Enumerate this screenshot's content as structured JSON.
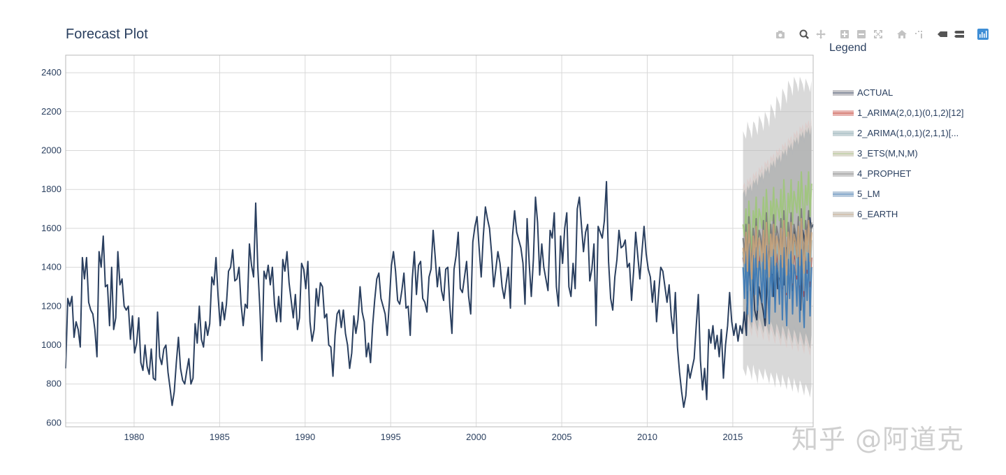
{
  "title": "Forecast Plot",
  "legend_title": "Legend",
  "watermark": "知乎 @阿道克",
  "modebar": {
    "buttons": [
      "camera-icon",
      "zoom-icon",
      "pan-icon",
      "zoom-in-icon",
      "zoom-out-icon",
      "autoscale-icon",
      "home-icon",
      "spike-lines-icon",
      "hover-closest-icon",
      "hover-compare-icon",
      "plotly-logo-icon"
    ]
  },
  "colors": {
    "actual": "#2a3f5f",
    "grid": "#d8d8d8",
    "axis": "#b8b8b8"
  },
  "chart_data": {
    "type": "line",
    "title": "Forecast Plot",
    "xlabel": "",
    "ylabel": "",
    "xlim": [
      1976,
      2019.7
    ],
    "ylim": [
      580,
      2490
    ],
    "x_ticks": [
      "1980",
      "1985",
      "1990",
      "1995",
      "2000",
      "2005",
      "2010",
      "2015"
    ],
    "y_ticks": [
      "600",
      "800",
      "1000",
      "1200",
      "1400",
      "1600",
      "1800",
      "2000",
      "2200",
      "2400"
    ],
    "grid": true,
    "legend_position": "right",
    "actual": {
      "name": "ACTUAL",
      "start_year": 1976.0,
      "end_year": 2019.7,
      "values": [
        880,
        1240,
        1200,
        1250,
        1040,
        1120,
        1080,
        990,
        1450,
        1340,
        1450,
        1220,
        1180,
        1160,
        1080,
        940,
        1480,
        1400,
        1560,
        1300,
        1310,
        1100,
        1400,
        1080,
        1140,
        1480,
        1310,
        1340,
        1200,
        1180,
        1200,
        1030,
        1150,
        960,
        1010,
        1140,
        910,
        870,
        1000,
        890,
        850,
        980,
        830,
        820,
        1170,
        940,
        900,
        980,
        1000,
        860,
        780,
        690,
        760,
        910,
        1040,
        880,
        820,
        800,
        870,
        930,
        800,
        830,
        1110,
        1010,
        1200,
        1030,
        990,
        1120,
        1050,
        1110,
        1350,
        1310,
        1450,
        1250,
        1100,
        1220,
        1130,
        1210,
        1380,
        1400,
        1490,
        1330,
        1340,
        1400,
        1210,
        1100,
        1210,
        1190,
        1520,
        1410,
        1350,
        1730,
        1400,
        1190,
        920,
        1380,
        1340,
        1410,
        1310,
        1400,
        1210,
        1120,
        1250,
        1120,
        1440,
        1380,
        1480,
        1320,
        1230,
        1140,
        1260,
        1080,
        1140,
        1420,
        1390,
        1290,
        1430,
        1120,
        1020,
        1080,
        1290,
        1200,
        1320,
        1300,
        1140,
        1160,
        1000,
        990,
        840,
        1050,
        1160,
        1180,
        1090,
        1180,
        1060,
        1000,
        880,
        960,
        1150,
        1060,
        1130,
        1300,
        1170,
        1120,
        940,
        1010,
        910,
        1100,
        1230,
        1340,
        1370,
        1240,
        1200,
        1160,
        1050,
        1220,
        1410,
        1480,
        1380,
        1230,
        1210,
        1280,
        1370,
        1190,
        1200,
        1050,
        1340,
        1480,
        1260,
        1410,
        1430,
        1240,
        1220,
        1170,
        1350,
        1390,
        1590,
        1450,
        1300,
        1400,
        1280,
        1230,
        1390,
        1400,
        1200,
        1060,
        1390,
        1460,
        1580,
        1290,
        1270,
        1350,
        1430,
        1250,
        1160,
        1530,
        1610,
        1660,
        1500,
        1350,
        1560,
        1710,
        1650,
        1600,
        1470,
        1300,
        1390,
        1480,
        1420,
        1300,
        1240,
        1320,
        1400,
        1190,
        1560,
        1690,
        1580,
        1540,
        1500,
        1420,
        1210,
        1650,
        1420,
        1250,
        1440,
        1760,
        1630,
        1360,
        1520,
        1400,
        1340,
        1280,
        1590,
        1550,
        1680,
        1300,
        1200,
        1560,
        1420,
        1600,
        1680,
        1300,
        1250,
        1420,
        1290,
        1700,
        1760,
        1620,
        1480,
        1580,
        1620,
        1330,
        1390,
        1520,
        1100,
        1610,
        1580,
        1550,
        1640,
        1840,
        1430,
        1240,
        1180,
        1350,
        1440,
        1590,
        1500,
        1510,
        1540,
        1400,
        1420,
        1230,
        1380,
        1580,
        1460,
        1340,
        1480,
        1610,
        1470,
        1390,
        1350,
        1220,
        1330,
        1120,
        1270,
        1400,
        1380,
        1300,
        1220,
        1310,
        1150,
        1060,
        1270,
        990,
        860,
        760,
        680,
        740,
        900,
        830,
        880,
        930,
        1100,
        1260,
        920,
        770,
        880,
        720,
        1080,
        1010,
        1100,
        980,
        1050,
        940,
        1080,
        830,
        1000,
        1100,
        1270,
        1120,
        1050,
        1110,
        1020,
        1100,
        1060,
        1170,
        1050,
        1490,
        1280,
        1400,
        1180,
        1130,
        1300,
        1240,
        1180,
        1100,
        1340,
        1480,
        1410,
        1250,
        1510,
        1290,
        1400,
        1460,
        1310,
        1500,
        1420,
        1580,
        1280,
        1600,
        1450,
        1540,
        1180,
        1590,
        1530,
        1560,
        1690,
        1600,
        1620
      ]
    },
    "forecast": {
      "start_year": 2015.6,
      "end_year": 2019.6,
      "n_points": 48,
      "interval_low": [
        880,
        860,
        840,
        900,
        880,
        860,
        820,
        900,
        860,
        840,
        800,
        880,
        860,
        840,
        820,
        880,
        850,
        830,
        800,
        860,
        840,
        820,
        780,
        860,
        830,
        810,
        780,
        850,
        820,
        800,
        770,
        840,
        820,
        790,
        760,
        830,
        800,
        780,
        750,
        820,
        800,
        770,
        740,
        800,
        780,
        760,
        730,
        790
      ],
      "interval_high": [
        2100,
        2080,
        2060,
        2150,
        2120,
        2100,
        2060,
        2150,
        2140,
        2110,
        2080,
        2180,
        2160,
        2140,
        2100,
        2200,
        2180,
        2160,
        2120,
        2240,
        2220,
        2200,
        2160,
        2280,
        2260,
        2240,
        2200,
        2320,
        2300,
        2280,
        2240,
        2360,
        2340,
        2320,
        2280,
        2380,
        2360,
        2340,
        2300,
        2380,
        2360,
        2340,
        2300,
        2370,
        2350,
        2330,
        2300,
        2360
      ],
      "inner_low": [
        1150,
        1120,
        1100,
        1160,
        1140,
        1110,
        1080,
        1150,
        1130,
        1100,
        1070,
        1140,
        1120,
        1090,
        1060,
        1130,
        1110,
        1080,
        1050,
        1120,
        1100,
        1070,
        1040,
        1110,
        1090,
        1060,
        1030,
        1100,
        1080,
        1050,
        1020,
        1090,
        1070,
        1040,
        1010,
        1080,
        1060,
        1030,
        1000,
        1070,
        1050,
        1020,
        990,
        1060,
        1040,
        1010,
        980,
        1050
      ],
      "inner_high": [
        1780,
        1800,
        1760,
        1820,
        1800,
        1830,
        1790,
        1850,
        1830,
        1860,
        1820,
        1880,
        1860,
        1890,
        1850,
        1910,
        1890,
        1920,
        1880,
        1940,
        1920,
        1950,
        1910,
        1970,
        1950,
        1980,
        1940,
        2000,
        1980,
        2010,
        1970,
        2030,
        2010,
        2040,
        2000,
        2060,
        2040,
        2070,
        2030,
        2090,
        2070,
        2100,
        2060,
        2110,
        2090,
        2120,
        2080,
        2130
      ],
      "series": [
        {
          "name": "1_ARIMA(2,0,1)(0,1,2)[12]",
          "color": "#c0392b",
          "band": "#e8b4b0",
          "values": [
            1450,
            1380,
            1520,
            1300,
            1560,
            1420,
            1260,
            1500,
            1380,
            1540,
            1330,
            1480,
            1420,
            1360,
            1520,
            1300,
            1550,
            1410,
            1270,
            1490,
            1390,
            1530,
            1320,
            1470,
            1430,
            1350,
            1510,
            1290,
            1540,
            1400,
            1260,
            1480,
            1380,
            1520,
            1310,
            1460,
            1440,
            1340,
            1500,
            1290,
            1530,
            1390,
            1250,
            1470,
            1370,
            1510,
            1300,
            1450
          ]
        },
        {
          "name": "2_ARIMA(1,0,1)(2,1,1)[...",
          "color": "#8fb0b8",
          "band": "#c9d6d9",
          "values": [
            1480,
            1350,
            1560,
            1280,
            1590,
            1400,
            1250,
            1530,
            1360,
            1580,
            1300,
            1510,
            1450,
            1340,
            1570,
            1290,
            1600,
            1410,
            1260,
            1540,
            1370,
            1590,
            1310,
            1520,
            1460,
            1350,
            1580,
            1300,
            1610,
            1420,
            1270,
            1550,
            1380,
            1600,
            1320,
            1530,
            1470,
            1360,
            1590,
            1310,
            1620,
            1430,
            1280,
            1560,
            1390,
            1610,
            1330,
            1540
          ]
        },
        {
          "name": "3_ETS(M,N,M)",
          "color": "#9fc77a",
          "band": "#dedbcf",
          "values": [
            1620,
            1560,
            1700,
            1520,
            1740,
            1610,
            1480,
            1690,
            1600,
            1760,
            1540,
            1700,
            1660,
            1600,
            1760,
            1560,
            1800,
            1660,
            1520,
            1740,
            1640,
            1810,
            1580,
            1750,
            1700,
            1640,
            1800,
            1600,
            1850,
            1700,
            1560,
            1780,
            1680,
            1850,
            1620,
            1790,
            1740,
            1680,
            1840,
            1640,
            1890,
            1740,
            1600,
            1820,
            1720,
            1890,
            1660,
            1830
          ]
        },
        {
          "name": "4_PROPHET",
          "color": "#7a7a7a",
          "band": "#cfcfcf",
          "values": [
            1550,
            1470,
            1620,
            1420,
            1660,
            1520,
            1390,
            1600,
            1500,
            1650,
            1440,
            1590,
            1560,
            1480,
            1640,
            1430,
            1680,
            1540,
            1400,
            1620,
            1520,
            1670,
            1460,
            1610,
            1570,
            1490,
            1650,
            1440,
            1690,
            1550,
            1410,
            1630,
            1530,
            1680,
            1470,
            1620,
            1580,
            1500,
            1660,
            1450,
            1700,
            1560,
            1420,
            1640,
            1540,
            1690,
            1480,
            1630
          ]
        },
        {
          "name": "5_LM",
          "color": "#3a78b5",
          "band": "#b8cadc",
          "values": [
            1400,
            1240,
            1480,
            1160,
            1520,
            1300,
            1120,
            1460,
            1260,
            1500,
            1180,
            1430,
            1380,
            1220,
            1470,
            1140,
            1510,
            1290,
            1110,
            1450,
            1250,
            1490,
            1170,
            1420,
            1370,
            1210,
            1460,
            1130,
            1500,
            1280,
            1100,
            1440,
            1240,
            1480,
            1160,
            1410,
            1360,
            1200,
            1450,
            1120,
            1490,
            1270,
            1090,
            1430,
            1230,
            1470,
            1150,
            1400
          ]
        },
        {
          "name": "6_EARTH",
          "color": "#c7a27a",
          "band": "#d9d5cf",
          "values": [
            1500,
            1420,
            1580,
            1380,
            1620,
            1480,
            1340,
            1560,
            1450,
            1610,
            1400,
            1550,
            1510,
            1430,
            1590,
            1390,
            1630,
            1490,
            1350,
            1570,
            1460,
            1620,
            1410,
            1560,
            1520,
            1440,
            1600,
            1400,
            1640,
            1500,
            1360,
            1580,
            1470,
            1630,
            1420,
            1570,
            1530,
            1450,
            1610,
            1410,
            1650,
            1510,
            1370,
            1590,
            1480,
            1640,
            1430,
            1580
          ]
        }
      ]
    },
    "legend": [
      {
        "name": "ACTUAL",
        "color": "#2a3f5f",
        "band": "#c4c4c8"
      },
      {
        "name": "1_ARIMA(2,0,1)(0,1,2)[12]",
        "color": "#c0392b",
        "band": "#e8b4b0"
      },
      {
        "name": "2_ARIMA(1,0,1)(2,1,1)[...",
        "color": "#8fb0b8",
        "band": "#c9d6d9"
      },
      {
        "name": "3_ETS(M,N,M)",
        "color": "#9fc77a",
        "band": "#dedbcf"
      },
      {
        "name": "4_PROPHET",
        "color": "#7a7a7a",
        "band": "#cfcfcf"
      },
      {
        "name": "5_LM",
        "color": "#3a78b5",
        "band": "#b8cadc"
      },
      {
        "name": "6_EARTH",
        "color": "#c7a27a",
        "band": "#d9d5cf"
      }
    ]
  }
}
